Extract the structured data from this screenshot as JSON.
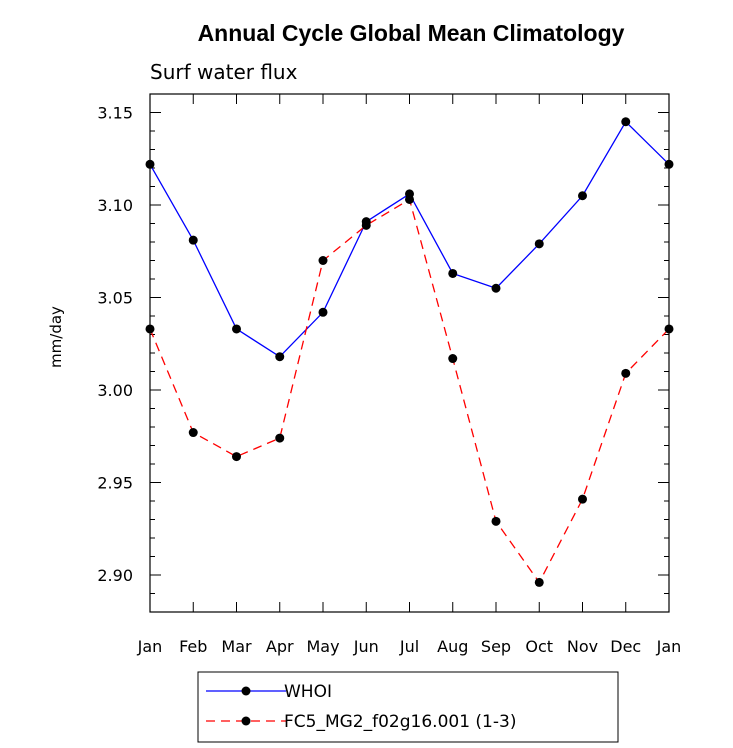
{
  "chart_data": {
    "type": "line",
    "title": "Annual Cycle Global Mean Climatology",
    "subtitle": "Surf water flux",
    "xlabel": "",
    "ylabel": "mm/day",
    "categories": [
      "Jan",
      "Feb",
      "Mar",
      "Apr",
      "May",
      "Jun",
      "Jul",
      "Aug",
      "Sep",
      "Oct",
      "Nov",
      "Dec",
      "Jan"
    ],
    "ylim": [
      2.88,
      3.16
    ],
    "yticks": [
      "2.90",
      "2.95",
      "3.00",
      "3.05",
      "3.10",
      "3.15"
    ],
    "ytick_values": [
      2.9,
      2.95,
      3.0,
      3.05,
      3.1,
      3.15
    ],
    "legend_position": "bottom-left",
    "series": [
      {
        "name": "WHOI",
        "color": "#0000ff",
        "dash": "solid",
        "values": [
          3.122,
          3.081,
          3.033,
          3.018,
          3.042,
          3.091,
          3.106,
          3.063,
          3.055,
          3.079,
          3.105,
          3.145,
          3.122
        ]
      },
      {
        "name": "FC5_MG2_f02g16.001 (1-3)",
        "color": "#ff0000",
        "dash": "dashed",
        "values": [
          3.033,
          2.977,
          2.964,
          2.974,
          3.07,
          3.089,
          3.103,
          3.017,
          2.929,
          2.896,
          2.941,
          3.009,
          3.033
        ]
      }
    ]
  }
}
